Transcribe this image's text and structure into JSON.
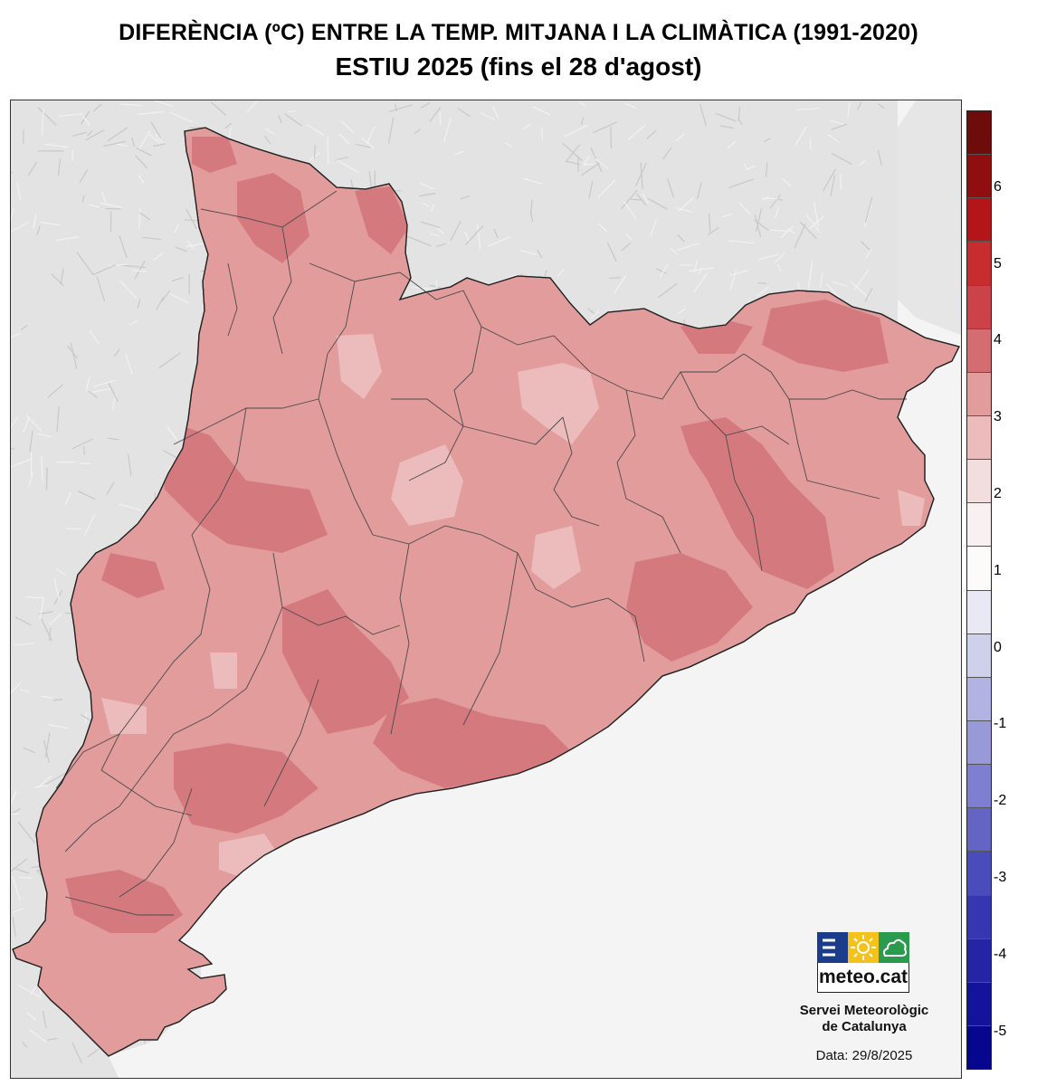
{
  "header": {
    "title": "DIFERÈNCIA (ºC) ENTRE LA TEMP. MITJANA I LA CLIMÀTICA (1991-2020)",
    "subtitle": "ESTIU 2025 (fins el 28 d'agost)"
  },
  "map": {
    "region": "Catalunya",
    "base_fill": "#e39c9c",
    "background_land": "#dcdcdc",
    "sea": "#f4f4f4",
    "anomaly_zones": [
      {
        "level": "2-2.5",
        "color": "#e39c9c"
      },
      {
        "level": "2.5-3",
        "color": "#d47a7e"
      },
      {
        "level": "1.5-2",
        "color": "#ecbcbc"
      }
    ]
  },
  "legend": {
    "ticks": [
      "6",
      "5",
      "4",
      "3",
      "2",
      "1",
      "0",
      "-1",
      "-2",
      "-3",
      "-4",
      "-5"
    ],
    "tick_values": [
      6,
      5,
      4,
      3,
      2,
      1,
      0,
      -1,
      -2,
      -3,
      -4,
      -5
    ],
    "min": -5.5,
    "max": 7,
    "colors": [
      "#6e0c0c",
      "#900e10",
      "#b31519",
      "#c72c2e",
      "#cc4249",
      "#d36d72",
      "#e39c9c",
      "#ecbcbc",
      "#f3dede",
      "#f9f1f1",
      "#fdfafa",
      "#e9e9f6",
      "#cfd0ec",
      "#b2b3e2",
      "#9799d9",
      "#7e7fd0",
      "#6464c5",
      "#4b4cbb",
      "#3636b0",
      "#2424a5",
      "#14149a",
      "#06068e"
    ]
  },
  "logo": {
    "text": "meteo.cat",
    "tile_colors": [
      "#1a3c8a",
      "#f5c21b",
      "#2a9a4c"
    ]
  },
  "footer": {
    "org_line1": "Servei Meteorològic",
    "org_line2": "de Catalunya",
    "date": "Data: 29/8/2025"
  }
}
